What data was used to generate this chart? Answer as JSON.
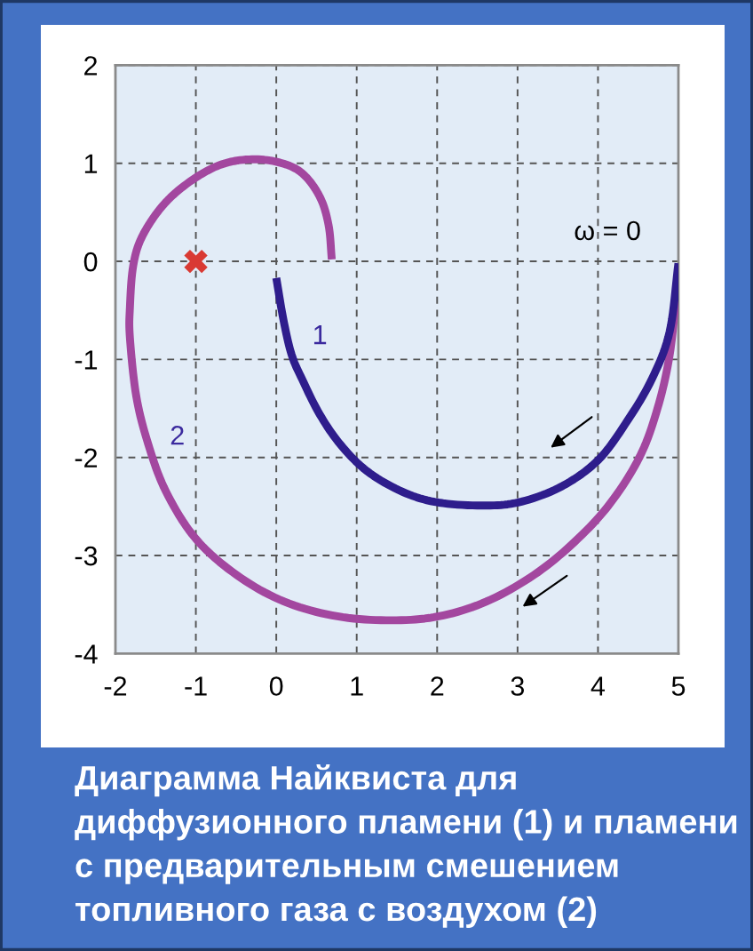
{
  "chart_data": {
    "type": "line",
    "title": "Диаграмма Найквиста для диффузионного пламени (1) и пламени с предварительным смешением топливного газа с воздухом (2)",
    "series": [
      {
        "name": "1",
        "color": "#2e1d8c",
        "x": [
          0,
          0.09,
          0.19,
          0.32,
          0.54,
          0.8,
          1.13,
          1.57,
          2.02,
          2.61,
          3.05,
          3.56,
          4.01,
          4.37,
          4.67,
          4.89,
          5.0
        ],
        "values": [
          -0.17,
          -0.6,
          -0.95,
          -1.2,
          -1.56,
          -1.87,
          -2.14,
          -2.35,
          -2.46,
          -2.49,
          -2.45,
          -2.29,
          -2.02,
          -1.62,
          -1.2,
          -0.72,
          -0.02
        ]
      },
      {
        "name": "2",
        "color": "#a3479f",
        "x": [
          0.69,
          0.65,
          0.54,
          0.32,
          0.03,
          -0.34,
          -0.71,
          -1.08,
          -1.41,
          -1.67,
          -1.78,
          -1.82,
          -1.82,
          -1.74,
          -1.59,
          -1.37,
          -1.0,
          -0.49,
          0.1,
          0.76,
          1.43,
          2.02,
          2.61,
          3.2,
          3.71,
          4.15,
          4.52,
          4.74,
          4.89,
          4.98
        ],
        "values": [
          0.02,
          0.37,
          0.66,
          0.9,
          1.01,
          1.04,
          0.98,
          0.81,
          0.57,
          0.25,
          -0.05,
          -0.47,
          -0.78,
          -1.38,
          -1.87,
          -2.35,
          -2.83,
          -3.2,
          -3.47,
          -3.62,
          -3.66,
          -3.62,
          -3.47,
          -3.2,
          -2.86,
          -2.47,
          -1.99,
          -1.5,
          -0.96,
          -0.3
        ]
      },
      {
        "type": "scatter",
        "color": "#d93a33",
        "marker": "cross",
        "x": [
          -1
        ],
        "values": [
          0
        ]
      }
    ],
    "xlim": [
      -2,
      5
    ],
    "ylim": [
      -4,
      2
    ],
    "xticks": [
      -2,
      -1,
      0,
      1,
      2,
      3,
      4,
      5
    ],
    "yticks": [
      -4,
      -3,
      -2,
      -1,
      0,
      1,
      2
    ],
    "grid": true,
    "annotations": [
      "ω = 0"
    ]
  }
}
